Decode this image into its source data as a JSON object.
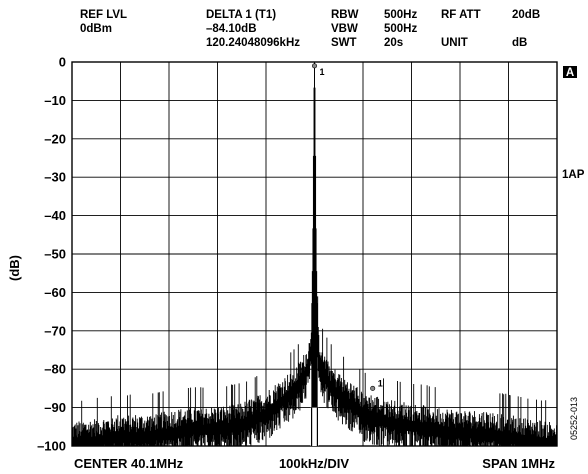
{
  "header": {
    "col1": [
      "REF LVL",
      "0dBm"
    ],
    "col2": [
      "DELTA 1 (T1)",
      "–84.10dB",
      "120.24048096kHz"
    ],
    "col3": [
      "RBW",
      "VBW",
      "SWT"
    ],
    "col4": [
      "500Hz",
      "500Hz",
      "20s"
    ],
    "col5": [
      "RF ATT",
      "",
      "UNIT"
    ],
    "col6": [
      "20dB",
      "",
      "dB"
    ]
  },
  "side_labels": {
    "box": "A",
    "trace": "1AP"
  },
  "figure_id": "05252-013",
  "colors": {
    "trace": "#000000",
    "grid": "#000000",
    "background": "#ffffff"
  },
  "chart_data": {
    "type": "line",
    "title": "",
    "xlabel": "",
    "ylabel": "(dB)",
    "footer": {
      "left": "CENTER 40.1MHz",
      "center": "100kHz/DIV",
      "right": "SPAN 1MHz"
    },
    "x_unit": "kHz offset from center",
    "xlim": [
      -500,
      500
    ],
    "ylim": [
      -100,
      0
    ],
    "yticks": [
      "0",
      "–10",
      "–20",
      "–30",
      "–40",
      "–50",
      "–60",
      "–70",
      "–80",
      "–90",
      "–100"
    ],
    "ytick_values": [
      0,
      -10,
      -20,
      -30,
      -40,
      -50,
      -60,
      -70,
      -80,
      -90,
      -100
    ],
    "x_divisions": 10,
    "grid": true,
    "markers": [
      {
        "label": "1",
        "x": 0,
        "y": -1
      },
      {
        "label": "1",
        "x": 120,
        "y": -85
      }
    ],
    "series": [
      {
        "x": [
          -500,
          -450,
          -400,
          -350,
          -300,
          -250,
          -200,
          -150,
          -100,
          -80,
          -60,
          -40,
          -30,
          -20,
          -15,
          -10,
          -7,
          -5,
          -3,
          -2,
          -1,
          0,
          1,
          2,
          3,
          5,
          7,
          10,
          15,
          20,
          30,
          40,
          60,
          80,
          100,
          150,
          200,
          250,
          300,
          350,
          400,
          450,
          500
        ],
        "y": [
          -96,
          -95,
          -94,
          -94,
          -93,
          -92,
          -92,
          -91,
          -88,
          -86,
          -84,
          -82,
          -80,
          -78,
          -76,
          -74,
          -70,
          -60,
          -40,
          -20,
          -5,
          -1,
          -5,
          -20,
          -40,
          -60,
          -70,
          -74,
          -76,
          -78,
          -80,
          -82,
          -84,
          -86,
          -88,
          -90,
          -91,
          -92,
          -93,
          -93,
          -94,
          -95,
          -96
        ]
      }
    ]
  }
}
